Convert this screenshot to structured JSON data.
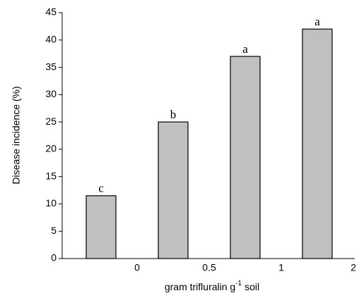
{
  "chart_data": {
    "type": "bar",
    "ylabel": "Disease incidence (%)",
    "xlabel": [
      "gram trifluralin g",
      "-1",
      "soil"
    ],
    "categories": [
      "0",
      "0.5",
      "1",
      "2"
    ],
    "values": [
      11.5,
      25,
      37,
      42
    ],
    "annotations": [
      "c",
      "b",
      "a",
      "a"
    ],
    "color": "#c0c0c0",
    "ylim": [
      0,
      45
    ],
    "yticks": [
      0,
      5,
      10,
      15,
      20,
      25,
      30,
      35,
      40,
      45
    ]
  }
}
